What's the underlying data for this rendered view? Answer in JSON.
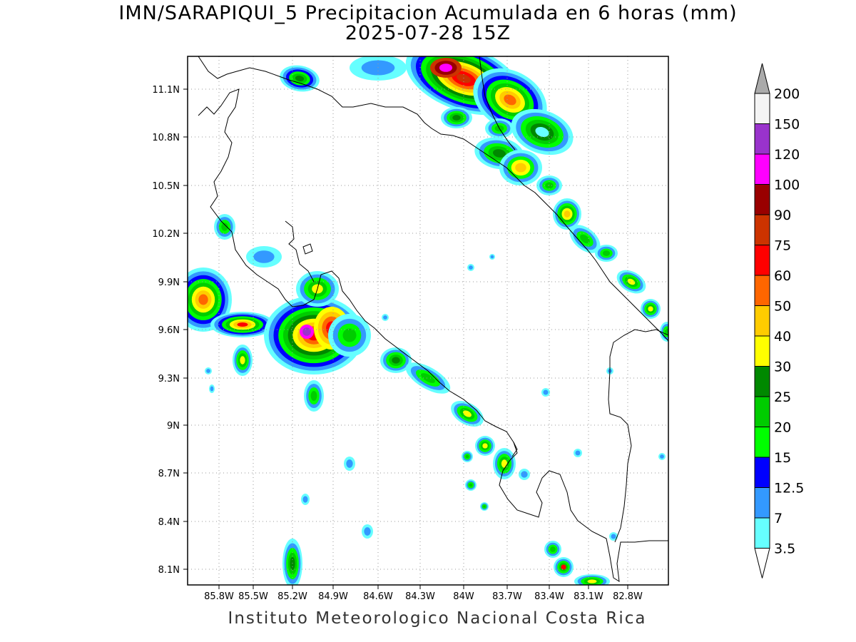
{
  "map": {
    "title_line1": "IMN/SARAPIQUI_5 Precipitacion Acumulada en 6 horas (mm)",
    "title_line2": "2025-07-28 15Z",
    "footer": "Instituto Meteorologico Nacional Costa Rica",
    "lon_labels": [
      "85.8W",
      "85.5W",
      "85.2W",
      "84.9W",
      "84.6W",
      "84.3W",
      "84W",
      "83.7W",
      "83.4W",
      "83.1W",
      "82.8W"
    ],
    "lat_labels": [
      "11.1N",
      "10.8N",
      "10.5N",
      "10.2N",
      "9.9N",
      "9.6N",
      "9.3N",
      "9N",
      "8.7N",
      "8.4N",
      "8.1N"
    ],
    "extent": {
      "lon_min": -86.05,
      "lon_max": -83.05,
      "lat_min": 8.0,
      "lat_max": 11.3
    }
  },
  "legend": {
    "levels": [
      "3.5",
      "7",
      "12.5",
      "15",
      "20",
      "25",
      "30",
      "40",
      "50",
      "60",
      "75",
      "90",
      "100",
      "120",
      "150",
      "200"
    ],
    "colors": [
      "#ffffff",
      "#66ffff",
      "#3399ff",
      "#0000ff",
      "#00ff00",
      "#00cc00",
      "#008800",
      "#ffff00",
      "#ffcc00",
      "#ff6600",
      "#ff0000",
      "#cc3300",
      "#990000",
      "#ff00ff",
      "#9933cc",
      "#f4f4f4",
      "#aaaaaa"
    ]
  }
}
